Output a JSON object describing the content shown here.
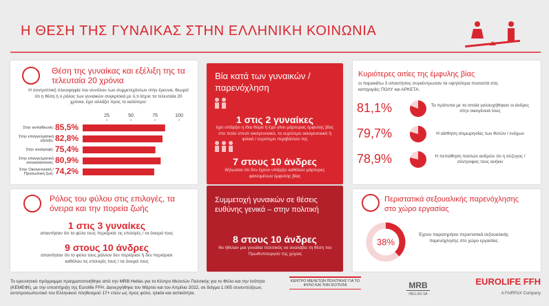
{
  "header": {
    "title": "Η ΘΕΣΗ ΤΗΣ ΓΥΝΑΙΚΑΣ ΣΤΗΝ ΕΛΛΗΝΙΚΗ ΚΟΙΝΩΝΙΑ"
  },
  "position": {
    "title": "Θέση της γυναίκας και εξέλιξη της τα τελευταία 20 χρόνια",
    "intro": "Η συντριπτική πλειοψηφία του συνόλου των συμμετεχόντων στην έρευνα, θεωρεί ότι η θέση ή ο ρόλος των γυναικών συγκριτικά με ό,τι ίσχυε τα τελευταία 20 χρόνια, έχει αλλάξει προς το καλύτερο:",
    "chart": {
      "type": "bar",
      "categories": [
        "Στην εκπαίδευση:",
        "Στην επαγγελματική εξέλιξη:",
        "Στην ανατροφή:",
        "Στην επαγγελματική αποκατάσταση:",
        "Στην Οικογενειακή / Προσωπική ζωή:"
      ],
      "values": [
        85.5,
        82.8,
        75.4,
        80.9,
        74.2
      ],
      "value_labels": [
        "85,5%",
        "82,8%",
        "75,4%",
        "80,9%",
        "74,2%"
      ],
      "xlim": [
        0,
        100
      ],
      "xticks": [
        25,
        50,
        75,
        100
      ],
      "color": "#d9262e"
    }
  },
  "gender_role": {
    "title": "Ρόλος του φύλου στις επιλογές, τα όνειρα και την πορεία ζωής",
    "stats": [
      {
        "headline": "1 στις 3 γυναίκες",
        "text": "απαντήσαν ότι το φύλο τους περιόρισε τις επιλογές / τα όνειρά τους"
      },
      {
        "headline": "9 στους 10 άνδρες",
        "text": "απαντήσαν ότι το φύλο τους μάλλον δεν περιόρισε ή δεν περιόρισε καθόλου τις επιλογές τους / τα όνειρά τους"
      }
    ]
  },
  "violence": {
    "title": "Βία κατά των γυναικών / παρενόχληση",
    "stats": [
      {
        "headline": "1 στις 2 γυναίκες",
        "text": "έχει υπάρξει η ίδια θύμα ή έχει γίνει μάρτυρας έμφυλης βίας στο πολύ στενό οικογενειακό, το ευρύτερο οικογενειακό ή φιλικό / ευρύτερο περιβάλλον της"
      },
      {
        "headline": "7 στους 10 άνδρες",
        "text": "δήλωσαν ότι δεν έχουν υπάρξει καθόλου μάρτυρες φαινομένων έμφυλης βίας"
      }
    ]
  },
  "participation": {
    "title": "Συμμετοχή γυναικών σε θέσεις ευθύνης γενικά – στην πολιτική",
    "stats": [
      {
        "headline": "8 στους 10 άνδρες",
        "text": "θα ήθελαν μια γυναίκα πολιτικός να αναλάβει τη θέση του Πρωθυπουργού της χώρας"
      }
    ]
  },
  "causes": {
    "title": "Κυριότερες αιτίες της έμφυλης βίας",
    "intro": "οι παρακάτω 3 απαντήσεις συγκέντρωσαν τα υψηλότερα ποσοστά στις κατηγορίες ΠΟΛΥ και ΑΡΚΕΤΑ:",
    "items": [
      {
        "value": {
          "value": 81.1,
          "label": "81,1%"
        },
        "text": "Τα πρότυπα με τα οποία γαλουχήθηκαν οι άνδρες στην οικογένειά τους"
      },
      {
        "value": {
          "value": 79.7,
          "label": "79,7%"
        },
        "text": "Η αίσθηση ατιμωρησίας των θυτών / ενόχων"
      },
      {
        "value": {
          "value": 78.9,
          "label": "78,9%"
        },
        "text": "Η πεποίθηση πολλών ανδρών ότι η σύζυγος / σύντροφος τους ανήκει"
      }
    ]
  },
  "harassment": {
    "title": "Περιστατικά σεξουαλικής παρενόχλησης στο χώρο εργασίας",
    "value": {
      "value": 38,
      "label": "38%"
    },
    "text": "Έχουν παρατηρήσει περιστατικά σεξουαλικής παρενόχλησης στο χώρο εργασίας"
  },
  "footer": {
    "note": "Το ερευνητικό πρόγραμμα πραγματοποιήθηκε από την MRB Hellas για το Κέντρο Μελετών Πολιτικής για το Φύλο και την Ισότητα (ΚΕΜΕΦΙ), με την υποστήριξη της Eurolife FFH. Διενεργήθηκε τον Μάρτιο και τον Απρίλιο 2022, σε δείγμα 1.005 συνεντεύξεων, αντιπροσωπευτικό του Ελληνικού πληθυσμού 17+ ετών ως προς φύλο, ηλικία και αστικότητα.",
    "logos": {
      "kemefi": "ΚΕΝΤΡΟ ΜΕΛΕΤΩΝ ΠΟΛΙΤΙΚΗΣ ΓΙΑ ΤΟ ΦΥΛΟ ΚΑΙ ΤΗΝ ΙΣΟΤΗΤΑ",
      "mrb": "MRB",
      "mrb_sub": "HELLAS SA",
      "eurolife": "EUROLIFE FFH",
      "fairfax": "A FAIRFAX Company"
    }
  }
}
